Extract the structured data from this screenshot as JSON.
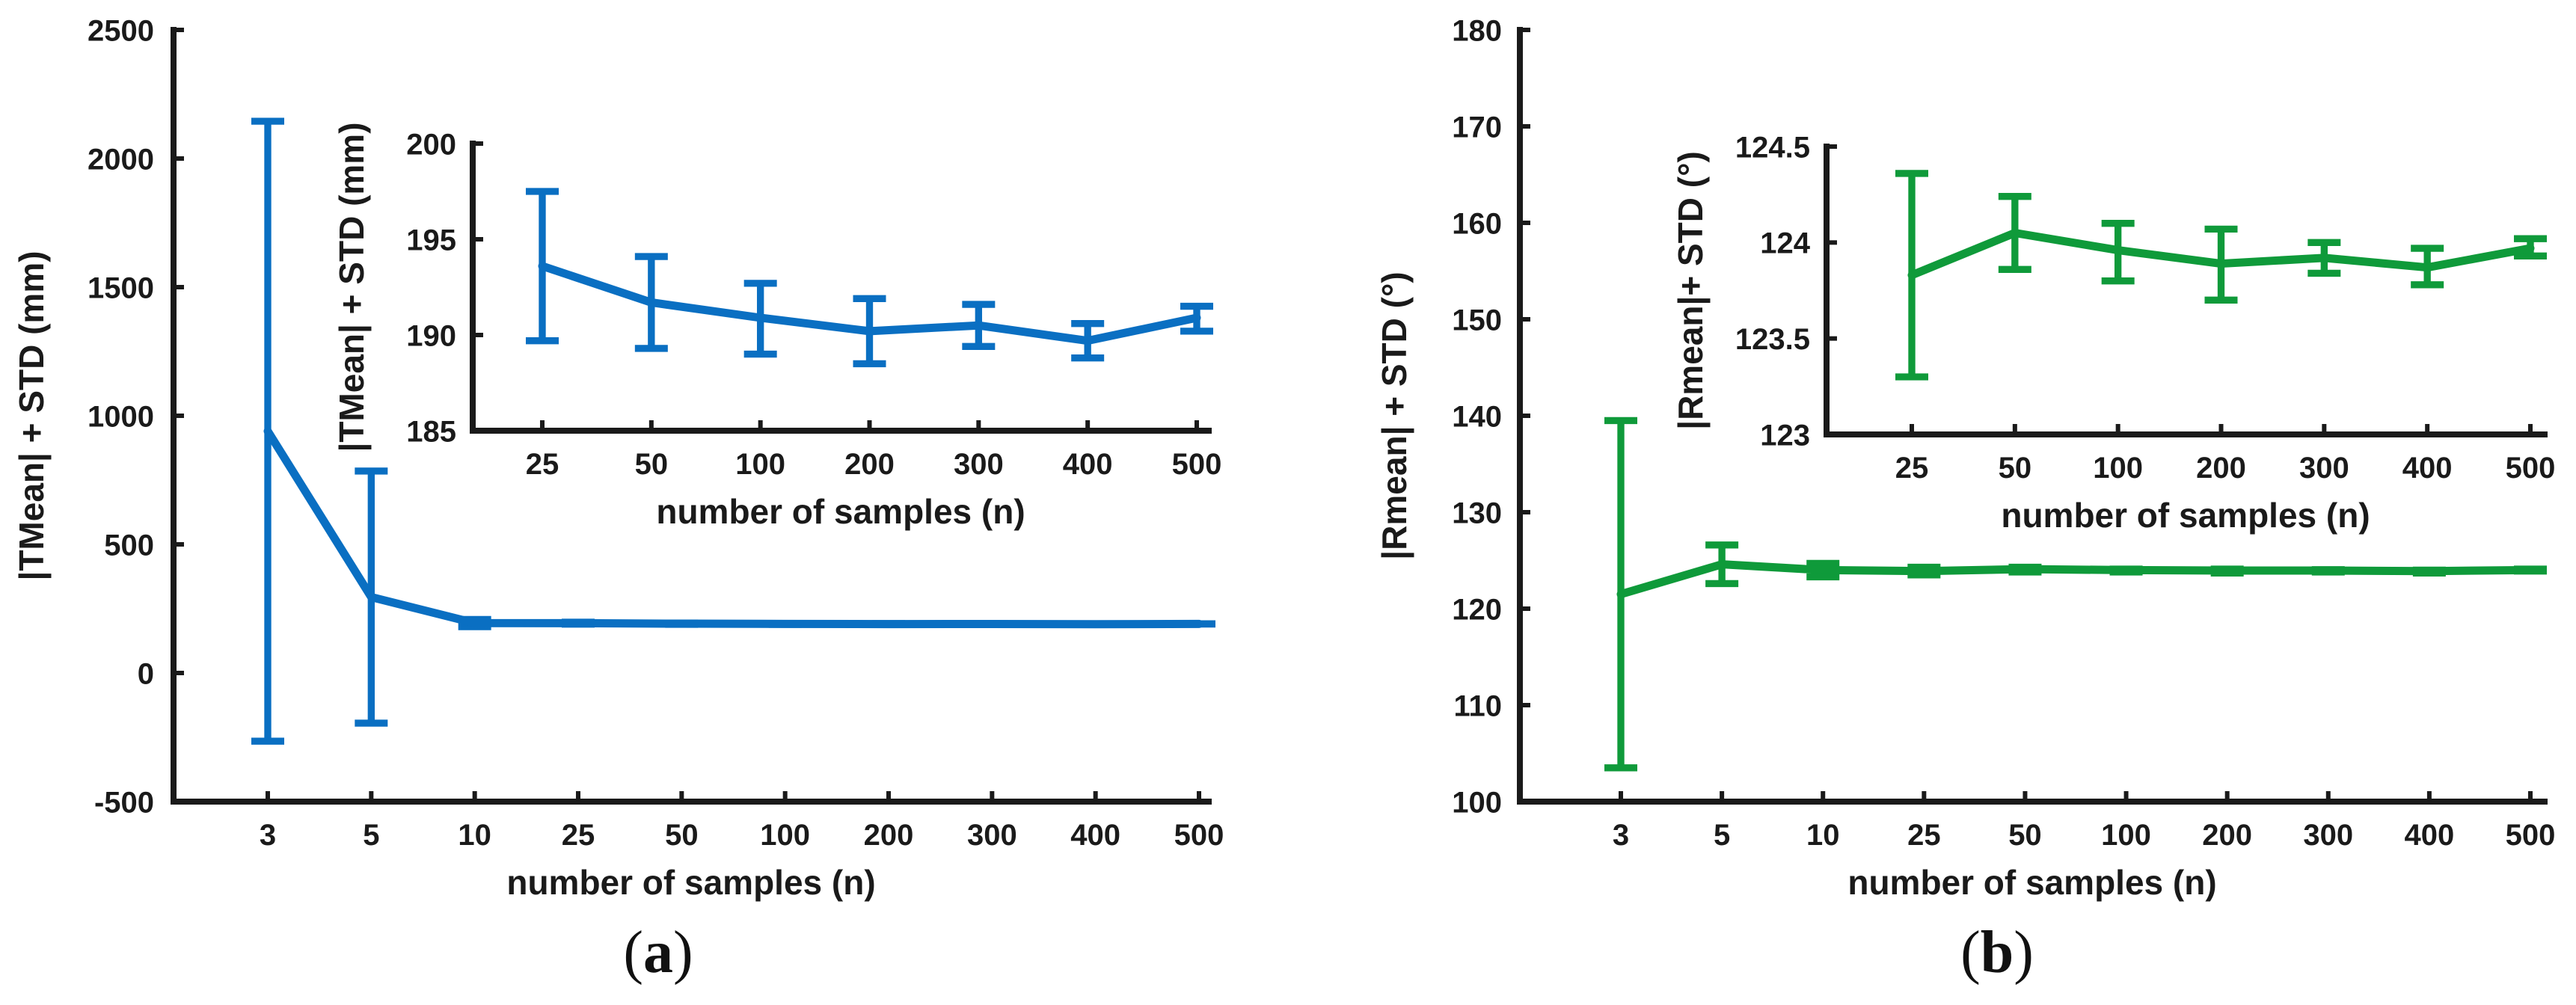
{
  "panel_labels": {
    "a": {
      "open": "(",
      "letter": "a",
      "close": ")"
    },
    "b": {
      "open": "(",
      "letter": "b",
      "close": ")"
    }
  },
  "colors": {
    "a": "#0a6fc2",
    "b": "#0f9a3a"
  },
  "chart_data": [
    {
      "id": "a-main",
      "type": "line",
      "title": "",
      "xlabel": "number of samples (n)",
      "ylabel": "|TMean| + STD (mm)",
      "categories": [
        "3",
        "5",
        "10",
        "25",
        "50",
        "100",
        "200",
        "300",
        "400",
        "500"
      ],
      "series": [
        {
          "name": "|TMean|",
          "values": [
            940,
            295,
            194,
            193.5,
            191.7,
            190.9,
            190.2,
            190.5,
            189.7,
            190.9
          ]
        }
      ],
      "error_low": [
        -265,
        -195,
        180,
        189.7,
        189.2,
        189.0,
        188.5,
        189.4,
        188.8,
        190.2
      ],
      "error_high": [
        2145,
        785,
        208,
        197.5,
        194.1,
        192.7,
        191.9,
        191.6,
        190.6,
        191.5
      ],
      "yticks": [
        "-500",
        "0",
        "500",
        "1000",
        "1500",
        "2000",
        "2500"
      ],
      "ylim": [
        -500,
        2500
      ]
    },
    {
      "id": "a-inset",
      "type": "line",
      "title": "",
      "xlabel": "number of samples (n)",
      "ylabel": "|TMean| + STD (mm)",
      "categories": [
        "25",
        "50",
        "100",
        "200",
        "300",
        "400",
        "500"
      ],
      "series": [
        {
          "name": "|TMean|",
          "values": [
            193.6,
            191.7,
            190.9,
            190.2,
            190.5,
            189.7,
            190.9
          ]
        }
      ],
      "error_low": [
        189.7,
        189.3,
        189.0,
        188.5,
        189.4,
        188.8,
        190.2
      ],
      "error_high": [
        197.5,
        194.1,
        192.7,
        191.9,
        191.6,
        190.6,
        191.5
      ],
      "yticks": [
        "185",
        "190",
        "195",
        "200"
      ],
      "ylim": [
        185,
        200
      ]
    },
    {
      "id": "b-main",
      "type": "line",
      "title": "",
      "xlabel": "number of samples (n)",
      "ylabel": "|Rmean| + STD (°)",
      "categories": [
        "3",
        "5",
        "10",
        "25",
        "50",
        "100",
        "200",
        "300",
        "400",
        "500"
      ],
      "series": [
        {
          "name": "|Rmean|",
          "values": [
            121.5,
            124.6,
            124.0,
            123.9,
            124.1,
            124.0,
            123.95,
            123.95,
            123.9,
            124.0
          ]
        }
      ],
      "error_low": [
        103.5,
        122.6,
        123.3,
        123.5,
        123.8,
        123.8,
        123.7,
        123.8,
        123.7,
        123.9
      ],
      "error_high": [
        139.5,
        126.6,
        124.7,
        124.3,
        124.3,
        124.1,
        124.1,
        124.05,
        124.0,
        124.1
      ],
      "yticks": [
        "100",
        "110",
        "120",
        "130",
        "140",
        "150",
        "160",
        "170",
        "180"
      ],
      "ylim": [
        100,
        180
      ]
    },
    {
      "id": "b-inset",
      "type": "line",
      "title": "",
      "xlabel": "number of samples (n)",
      "ylabel": "|Rmean|+ STD (°)",
      "categories": [
        "25",
        "50",
        "100",
        "200",
        "300",
        "400",
        "500"
      ],
      "series": [
        {
          "name": "|Rmean|",
          "values": [
            123.83,
            124.05,
            123.96,
            123.89,
            123.92,
            123.87,
            123.97
          ]
        }
      ],
      "error_low": [
        123.3,
        123.86,
        123.8,
        123.7,
        123.84,
        123.78,
        123.93
      ],
      "error_high": [
        124.36,
        124.24,
        124.1,
        124.07,
        124.0,
        123.97,
        124.02
      ],
      "yticks": [
        "123",
        "123.5",
        "124",
        "124.5"
      ],
      "ylim": [
        123,
        124.5
      ]
    }
  ]
}
